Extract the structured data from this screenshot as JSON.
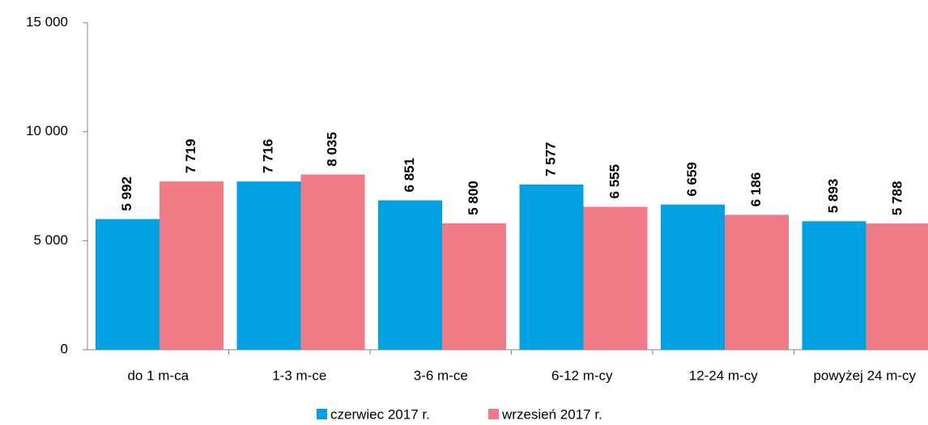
{
  "chart_data": {
    "type": "bar",
    "categories": [
      "do 1 m-ca",
      "1-3 m-ce",
      "3-6 m-ce",
      "6-12 m-cy",
      "12-24 m-cy",
      "powyżej 24 m-cy"
    ],
    "series": [
      {
        "name": "czerwiec 2017 r.",
        "color": "#00a0e3",
        "values": [
          5992,
          7716,
          6851,
          7577,
          6659,
          5893
        ],
        "value_labels": [
          "5 992",
          "7 716",
          "6 851",
          "7 577",
          "6 659",
          "5 893"
        ]
      },
      {
        "name": "wrzesień 2017 r.",
        "color": "#f07b86",
        "values": [
          7719,
          8035,
          5800,
          6555,
          6186,
          5788
        ],
        "value_labels": [
          "7 719",
          "8 035",
          "5 800",
          "6 555",
          "6 186",
          "5 788"
        ]
      }
    ],
    "ylim": [
      0,
      15000
    ],
    "yticks": [
      0,
      {
        "value": 5000,
        "label": "5 000"
      },
      {
        "value": 10000,
        "label": "10 000"
      },
      {
        "value": 15000,
        "label": "15 000"
      }
    ],
    "legend": "bottom"
  }
}
